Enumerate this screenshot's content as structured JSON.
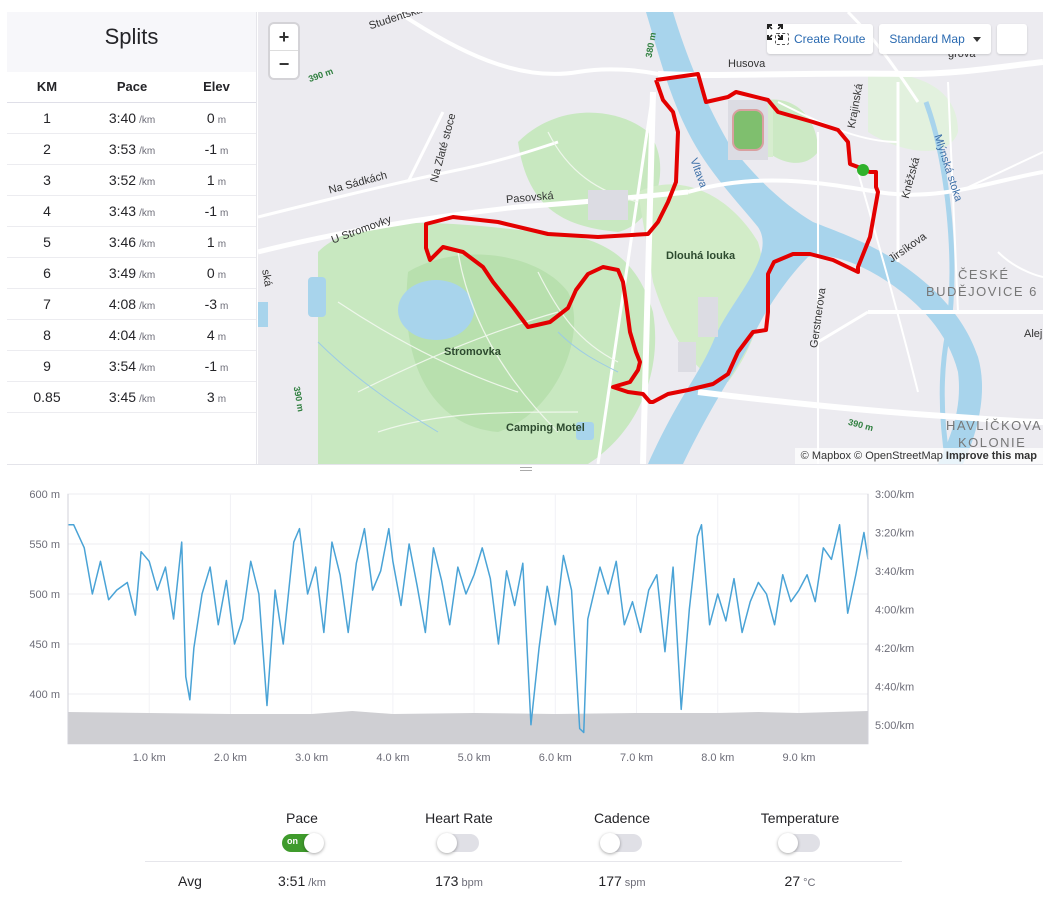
{
  "splits": {
    "title": "Splits",
    "headers": [
      "KM",
      "Pace",
      "Elev"
    ],
    "rows": [
      {
        "km": "1",
        "pace": "3:40",
        "pace_unit": "/km",
        "elev": "0",
        "elev_unit": "m"
      },
      {
        "km": "2",
        "pace": "3:53",
        "pace_unit": "/km",
        "elev": "-1",
        "elev_unit": "m"
      },
      {
        "km": "3",
        "pace": "3:52",
        "pace_unit": "/km",
        "elev": "1",
        "elev_unit": "m"
      },
      {
        "km": "4",
        "pace": "3:43",
        "pace_unit": "/km",
        "elev": "-1",
        "elev_unit": "m"
      },
      {
        "km": "5",
        "pace": "3:46",
        "pace_unit": "/km",
        "elev": "1",
        "elev_unit": "m"
      },
      {
        "km": "6",
        "pace": "3:49",
        "pace_unit": "/km",
        "elev": "0",
        "elev_unit": "m"
      },
      {
        "km": "7",
        "pace": "4:08",
        "pace_unit": "/km",
        "elev": "-3",
        "elev_unit": "m"
      },
      {
        "km": "8",
        "pace": "4:04",
        "pace_unit": "/km",
        "elev": "4",
        "elev_unit": "m"
      },
      {
        "km": "9",
        "pace": "3:54",
        "pace_unit": "/km",
        "elev": "-1",
        "elev_unit": "m"
      },
      {
        "km": "0.85",
        "pace": "3:45",
        "pace_unit": "/km",
        "elev": "3",
        "elev_unit": "m"
      }
    ]
  },
  "map": {
    "zoom_in": "+",
    "zoom_out": "−",
    "create_route": "Create Route",
    "map_style": "Standard Map",
    "attribution_mapbox": "© Mapbox",
    "attribution_osm": "© OpenStreetMap",
    "improve": "Improve this map",
    "route_color": "#e30000",
    "start_color": "#2fb12b",
    "labels": {
      "studentska": "Studentská",
      "husova": "Husova",
      "krajinska": "Krajinská",
      "mlynska": "Mlýnská stoka",
      "knezska": "Kněžská",
      "jirsikova": "Jirsíkova",
      "na_sadkach": "Na Sádkách",
      "na_zlate_stoce": "Na Zlaté stoce",
      "pasovska": "Pasovská",
      "u_stromovky": "U Stromovky",
      "vltava": "Vltava",
      "dlouha_louka": "Dlouhá louka",
      "ceske": "ČESKÉ",
      "budejovice": "BUDĚJOVICE 6",
      "stromovka": "Stromovka",
      "camping": "Camping Motel",
      "gerstnerova": "Gerstnerova",
      "havlickova": "HAVLÍČKOVA",
      "kolonie": "KOLONIE",
      "alej": "Alej",
      "cska": "ská",
      "grova": "grova",
      "c390a": "390 m",
      "c380": "380 m",
      "c390b": "390 m",
      "c390c": "390 m"
    }
  },
  "chart_data": {
    "type": "line",
    "x_unit": "km",
    "x_ticks": [
      "1.0 km",
      "2.0 km",
      "3.0 km",
      "4.0 km",
      "5.0 km",
      "6.0 km",
      "7.0 km",
      "8.0 km",
      "9.0 km"
    ],
    "y_left_ticks": [
      "600 m",
      "550 m",
      "500 m",
      "450 m",
      "400 m"
    ],
    "y_right_ticks": [
      "3:00/km",
      "3:20/km",
      "3:40/km",
      "4:00/km",
      "4:20/km",
      "4:40/km",
      "5:00/km"
    ],
    "xlim": [
      0,
      9.85
    ],
    "elevation_ylim": [
      350,
      600
    ],
    "pace_ylim_sec_per_km": [
      180,
      310
    ],
    "series": [
      {
        "kind": "pace",
        "color": "#4aa3d6",
        "x": [
          0.0,
          0.07,
          0.2,
          0.3,
          0.4,
          0.5,
          0.6,
          0.73,
          0.83,
          0.9,
          1.0,
          1.1,
          1.2,
          1.3,
          1.4,
          1.45,
          1.5,
          1.55,
          1.65,
          1.75,
          1.85,
          1.95,
          2.05,
          2.15,
          2.25,
          2.35,
          2.45,
          2.55,
          2.65,
          2.78,
          2.85,
          2.95,
          3.05,
          3.15,
          3.25,
          3.35,
          3.45,
          3.55,
          3.65,
          3.75,
          3.85,
          3.95,
          4.0,
          4.1,
          4.2,
          4.3,
          4.4,
          4.5,
          4.6,
          4.7,
          4.8,
          4.9,
          5.0,
          5.1,
          5.2,
          5.3,
          5.4,
          5.5,
          5.6,
          5.7,
          5.8,
          5.9,
          6.0,
          6.1,
          6.2,
          6.3,
          6.35,
          6.4,
          6.45,
          6.55,
          6.65,
          6.75,
          6.85,
          6.95,
          7.05,
          7.15,
          7.25,
          7.35,
          7.45,
          7.55,
          7.65,
          7.75,
          7.8,
          7.9,
          8.0,
          8.1,
          8.2,
          8.3,
          8.4,
          8.5,
          8.6,
          8.7,
          8.8,
          8.9,
          9.0,
          9.1,
          9.2,
          9.3,
          9.4,
          9.5,
          9.6,
          9.7,
          9.8,
          9.85
        ],
        "values_sec_per_km": [
          196,
          196,
          208,
          232,
          215,
          235,
          230,
          226,
          243,
          210,
          215,
          230,
          218,
          245,
          205,
          275,
          287,
          260,
          232,
          218,
          248,
          225,
          258,
          245,
          215,
          232,
          290,
          230,
          258,
          205,
          198,
          232,
          218,
          252,
          205,
          222,
          252,
          216,
          198,
          230,
          220,
          198,
          215,
          238,
          206,
          228,
          252,
          208,
          225,
          248,
          218,
          232,
          222,
          208,
          224,
          258,
          220,
          238,
          216,
          300,
          260,
          228,
          248,
          212,
          230,
          302,
          304,
          245,
          236,
          218,
          232,
          215,
          248,
          236,
          252,
          230,
          222,
          262,
          218,
          292,
          240,
          202,
          196,
          248,
          232,
          246,
          224,
          252,
          236,
          226,
          232,
          248,
          222,
          236,
          230,
          222,
          236,
          208,
          214,
          196,
          242,
          222,
          200,
          214,
          196,
          196
        ],
        "x_min": 0,
        "x_max": 9.85
      },
      {
        "kind": "elevation",
        "color": "#cfcfd3",
        "x": [
          0,
          1,
          2,
          3,
          3.5,
          4,
          5,
          6,
          7,
          8,
          8.5,
          9,
          9.85
        ],
        "values": [
          382,
          381,
          380,
          380,
          383,
          380,
          381,
          380,
          381,
          381,
          382,
          381,
          383
        ]
      }
    ]
  },
  "stats": {
    "items": [
      {
        "label": "Pace",
        "toggle": "on",
        "toggle_text": "on",
        "avg": "3:51",
        "unit": "/km"
      },
      {
        "label": "Heart Rate",
        "toggle": "off",
        "toggle_text": "",
        "avg": "173",
        "unit": "bpm"
      },
      {
        "label": "Cadence",
        "toggle": "off",
        "toggle_text": "",
        "avg": "177",
        "unit": "spm"
      },
      {
        "label": "Temperature",
        "toggle": "off",
        "toggle_text": "",
        "avg": "27",
        "unit": "°C"
      }
    ],
    "avg_label": "Avg"
  }
}
